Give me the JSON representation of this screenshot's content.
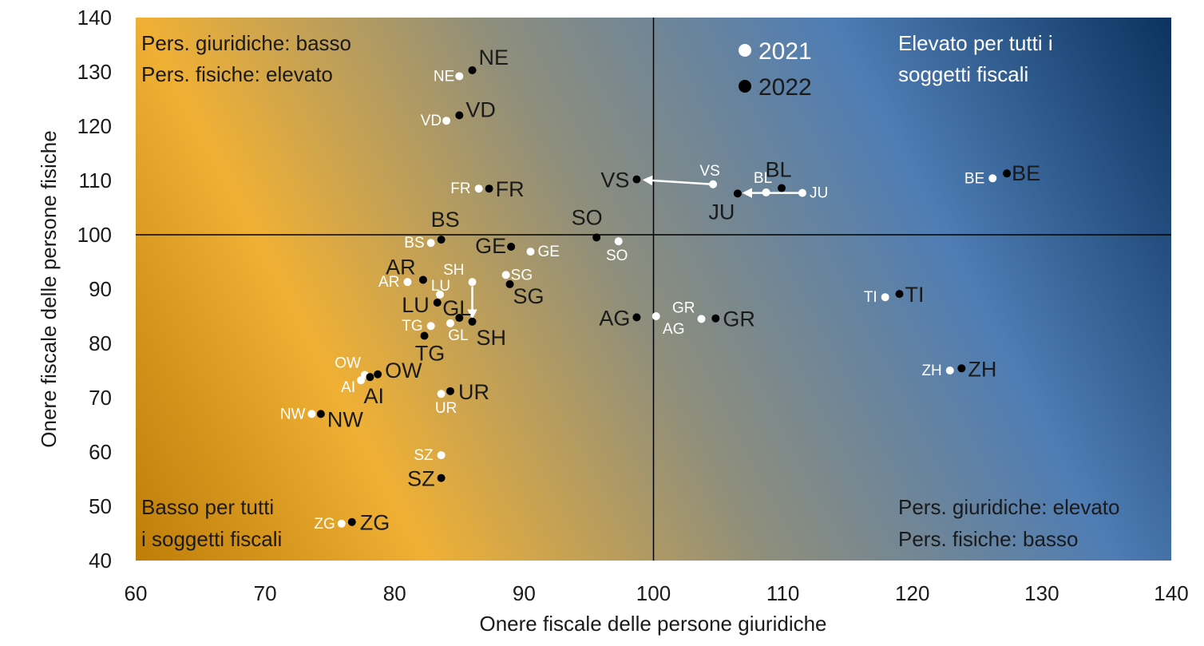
{
  "chart_data": {
    "type": "scatter",
    "title": "",
    "xlabel": "Onere fiscale delle persone giuridiche",
    "ylabel": "Onere fiscale delle persone fisiche",
    "xlim": [
      60,
      140
    ],
    "ylim": [
      40,
      140
    ],
    "x_ticks": [
      "60",
      "70",
      "80",
      "90",
      "100",
      "110",
      "120",
      "130",
      "140"
    ],
    "y_ticks": [
      "40",
      "50",
      "60",
      "70",
      "80",
      "90",
      "100",
      "110",
      "120",
      "130",
      "140"
    ],
    "reference_lines": {
      "x": 100,
      "y": 100
    },
    "grid": false,
    "legend": {
      "position": "top-center",
      "entries": [
        "2021",
        "2022"
      ]
    },
    "series": [
      {
        "name": "2021",
        "color": "#ffffff",
        "points": [
          {
            "label": "NE",
            "x": 85.0,
            "y": 129.2
          },
          {
            "label": "VD",
            "x": 84.0,
            "y": 121.0
          },
          {
            "label": "FR",
            "x": 86.5,
            "y": 108.5
          },
          {
            "label": "VS",
            "x": 104.6,
            "y": 109.3
          },
          {
            "label": "BL",
            "x": 108.7,
            "y": 107.8
          },
          {
            "label": "JU",
            "x": 111.5,
            "y": 107.7
          },
          {
            "label": "BE",
            "x": 126.2,
            "y": 110.4
          },
          {
            "label": "BS",
            "x": 82.8,
            "y": 98.5
          },
          {
            "label": "SO",
            "x": 97.3,
            "y": 98.8
          },
          {
            "label": "GE",
            "x": 90.5,
            "y": 96.9
          },
          {
            "label": "AR",
            "x": 81.0,
            "y": 91.3
          },
          {
            "label": "LU",
            "x": 83.5,
            "y": 89.0
          },
          {
            "label": "SH",
            "x": 86.0,
            "y": 91.3
          },
          {
            "label": "SG",
            "x": 88.6,
            "y": 92.6
          },
          {
            "label": "TG",
            "x": 82.8,
            "y": 83.2
          },
          {
            "label": "GL",
            "x": 84.3,
            "y": 83.7
          },
          {
            "label": "AG",
            "x": 100.2,
            "y": 85.0
          },
          {
            "label": "GR",
            "x": 103.7,
            "y": 84.5
          },
          {
            "label": "TI",
            "x": 117.9,
            "y": 88.5
          },
          {
            "label": "ZH",
            "x": 122.9,
            "y": 75.0
          },
          {
            "label": "OW",
            "x": 77.7,
            "y": 74.2
          },
          {
            "label": "AI",
            "x": 77.4,
            "y": 73.2
          },
          {
            "label": "UR",
            "x": 83.6,
            "y": 70.7
          },
          {
            "label": "NW",
            "x": 73.6,
            "y": 67.0
          },
          {
            "label": "SZ",
            "x": 83.6,
            "y": 59.4
          },
          {
            "label": "ZG",
            "x": 75.9,
            "y": 46.8
          }
        ]
      },
      {
        "name": "2022",
        "color": "#000000",
        "points": [
          {
            "label": "NE",
            "x": 86.0,
            "y": 130.3
          },
          {
            "label": "VD",
            "x": 85.0,
            "y": 122.0
          },
          {
            "label": "FR",
            "x": 87.3,
            "y": 108.5
          },
          {
            "label": "VS",
            "x": 98.7,
            "y": 110.2
          },
          {
            "label": "BL",
            "x": 109.9,
            "y": 108.6
          },
          {
            "label": "JU",
            "x": 106.5,
            "y": 107.6
          },
          {
            "label": "BE",
            "x": 127.3,
            "y": 111.3
          },
          {
            "label": "BS",
            "x": 83.6,
            "y": 99.1
          },
          {
            "label": "SO",
            "x": 95.6,
            "y": 99.5
          },
          {
            "label": "GE",
            "x": 89.0,
            "y": 97.8
          },
          {
            "label": "AR",
            "x": 82.2,
            "y": 91.7
          },
          {
            "label": "LU",
            "x": 83.3,
            "y": 87.5
          },
          {
            "label": "SH",
            "x": 86.0,
            "y": 84.0
          },
          {
            "label": "SG",
            "x": 88.9,
            "y": 90.9
          },
          {
            "label": "TG",
            "x": 82.3,
            "y": 81.4
          },
          {
            "label": "GL",
            "x": 85.0,
            "y": 84.7
          },
          {
            "label": "AG",
            "x": 98.7,
            "y": 84.8
          },
          {
            "label": "GR",
            "x": 104.8,
            "y": 84.6
          },
          {
            "label": "TI",
            "x": 119.0,
            "y": 89.1
          },
          {
            "label": "ZH",
            "x": 123.8,
            "y": 75.4
          },
          {
            "label": "OW",
            "x": 78.7,
            "y": 74.3
          },
          {
            "label": "AI",
            "x": 78.1,
            "y": 73.8
          },
          {
            "label": "UR",
            "x": 84.3,
            "y": 71.2
          },
          {
            "label": "NW",
            "x": 74.3,
            "y": 67.0
          },
          {
            "label": "SZ",
            "x": 83.6,
            "y": 55.2
          },
          {
            "label": "ZG",
            "x": 76.7,
            "y": 47.1
          }
        ]
      }
    ],
    "arrows": [
      {
        "label": "VS",
        "from": {
          "x": 104.6,
          "y": 109.3
        },
        "to": {
          "x": 99.3,
          "y": 110.1
        }
      },
      {
        "label": "JU",
        "from": {
          "x": 111.5,
          "y": 107.7
        },
        "to": {
          "x": 107.0,
          "y": 107.7
        }
      },
      {
        "label": "SH",
        "from": {
          "x": 86.0,
          "y": 90.5
        },
        "to": {
          "x": 86.0,
          "y": 84.8
        }
      }
    ],
    "quadrant_labels": {
      "top_left": [
        "Pers. giuridiche: basso",
        "Pers. fisiche: elevato"
      ],
      "top_right": [
        "Elevato per tutti i",
        "soggetti fiscali"
      ],
      "bottom_left": [
        "Basso per tutti",
        "i soggetti fiscali"
      ],
      "bottom_right": [
        "Pers. giuridiche: elevato",
        "Pers. fisiche: basso"
      ]
    },
    "colors": {
      "gradient_dark_orange": "#c98a10",
      "gradient_orange": "#f0b034",
      "gradient_grey": "#8c8c7c",
      "gradient_blue": "#4f7db4",
      "gradient_navy": "#0c3461"
    }
  }
}
